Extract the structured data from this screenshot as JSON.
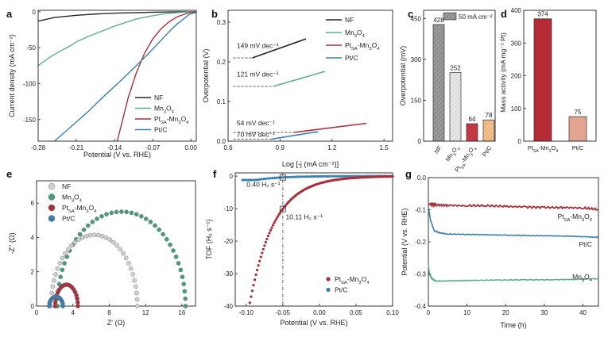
{
  "colors": {
    "nf": "#262626",
    "mn3o4": "#5fae92",
    "pt": "#a8303c",
    "ptc": "#3b7fae",
    "nf_light": "#cfcfcf",
    "mn_light": "#4a9c7e",
    "bar_nf": "#7a7a7a",
    "bar_mn": "#cfcfcf",
    "bar_pt": "#b52a37",
    "bar_ptc": "#e8a663",
    "mass_pt": "#b52a37",
    "mass_ptc": "#e3a592"
  },
  "chart_data": [
    {
      "panel": "a",
      "type": "line",
      "xlabel": "Potential (V vs. RHE)",
      "ylabel": "Current density (mA cm⁻²)",
      "xlim": [
        -0.28,
        0.01
      ],
      "ylim": [
        -180,
        2
      ],
      "xticks": [
        "-0.28",
        "-0.21",
        "-0.14",
        "-0.07",
        "0.00"
      ],
      "yticks": [
        "0",
        "-50",
        "-100",
        "-150"
      ],
      "legend": [
        "NF",
        "Mn3O4",
        "PtSA-Mn3O4",
        "Pt/C"
      ],
      "series": [
        {
          "name": "NF",
          "color_key": "nf",
          "x": [
            -0.28,
            -0.25,
            -0.21,
            -0.17,
            -0.14,
            -0.1,
            -0.07,
            -0.04,
            -0.02,
            0.0,
            0.01
          ],
          "y": [
            -13,
            -8,
            -5,
            -3,
            -2,
            -1.2,
            -0.7,
            -0.3,
            -0.1,
            0,
            0
          ]
        },
        {
          "name": "Mn3O4",
          "color_key": "mn3o4",
          "x": [
            -0.28,
            -0.26,
            -0.24,
            -0.22,
            -0.21,
            -0.19,
            -0.17,
            -0.15,
            -0.14,
            -0.12,
            -0.1,
            -0.08,
            -0.07,
            -0.05,
            -0.03,
            -0.01,
            0.0,
            0.01
          ],
          "y": [
            -75,
            -64,
            -55,
            -47,
            -42,
            -35,
            -29,
            -23,
            -20,
            -15,
            -10,
            -7,
            -5.5,
            -3,
            -1.5,
            -0.5,
            -0.2,
            0
          ]
        },
        {
          "name": "PtSA-Mn3O4",
          "color_key": "pt",
          "x": [
            -0.135,
            -0.125,
            -0.115,
            -0.1,
            -0.085,
            -0.07,
            -0.055,
            -0.04,
            -0.025,
            -0.01,
            0.0,
            0.01
          ],
          "y": [
            -180,
            -150,
            -120,
            -85,
            -58,
            -38,
            -24,
            -14,
            -7,
            -3,
            -1,
            0
          ]
        },
        {
          "name": "Pt/C",
          "color_key": "ptc",
          "x": [
            -0.25,
            -0.22,
            -0.19,
            -0.16,
            -0.13,
            -0.1,
            -0.08,
            -0.06,
            -0.045,
            -0.035,
            -0.025,
            -0.015,
            -0.005,
            0.0,
            0.01
          ],
          "y": [
            -180,
            -160,
            -140,
            -118,
            -97,
            -75,
            -60,
            -44,
            -32,
            -24,
            -17,
            -11,
            -5,
            -3,
            -1
          ]
        }
      ]
    },
    {
      "panel": "b",
      "type": "line",
      "xlabel": "Log [-j (mA cm⁻²)]",
      "ylabel": "Overpotential (V)",
      "xlim": [
        0.6,
        1.55
      ],
      "ylim": [
        0.0,
        0.33
      ],
      "xticks": [
        "0.6",
        "0.9",
        "1.2",
        "1.5"
      ],
      "yticks": [
        "0.0",
        "0.1",
        "0.2",
        "0.3"
      ],
      "legend": [
        "NF",
        "Mn3O4",
        "PtSA-Mn3O4",
        "Pt/C"
      ],
      "series": [
        {
          "name": "NF",
          "color_key": "nf",
          "x": [
            0.74,
            1.05
          ],
          "y": [
            0.21,
            0.258
          ]
        },
        {
          "name": "Mn3O4",
          "color_key": "mn3o4",
          "x": [
            0.86,
            1.16
          ],
          "y": [
            0.138,
            0.176
          ]
        },
        {
          "name": "PtSA-Mn3O4",
          "color_key": "pt",
          "x": [
            0.98,
            1.4
          ],
          "y": [
            0.022,
            0.045
          ]
        },
        {
          "name": "Pt/C",
          "color_key": "ptc",
          "x": [
            0.85,
            1.12
          ],
          "y": [
            0.005,
            0.024
          ]
        }
      ],
      "annotations": [
        "149 mV dec⁻¹",
        "121 mV dec⁻¹",
        "54 mV dec⁻¹",
        "70 mV dec⁻¹"
      ]
    },
    {
      "panel": "c",
      "type": "bar",
      "ylabel": "Overpotential (mV)",
      "ylim": [
        0,
        480
      ],
      "yticks": [
        "0",
        "150",
        "300",
        "450"
      ],
      "legend": "50 mA cm⁻²",
      "categories": [
        "NF",
        "Mn3O4",
        "PtSA-Mn3O4",
        "Pt/C"
      ],
      "values": [
        428,
        252,
        64,
        78
      ],
      "value_labels": [
        "428",
        "252",
        "64",
        "78"
      ]
    },
    {
      "panel": "d",
      "type": "bar",
      "ylabel": "Mass activity (mA mg⁻¹ Pt)",
      "ylim": [
        0,
        400
      ],
      "yticks": [
        "0",
        "100",
        "200",
        "300",
        "400"
      ],
      "categories": [
        "PtSA-Mn3O4",
        "Pt/C"
      ],
      "values": [
        374,
        75
      ],
      "value_labels": [
        "374",
        "75"
      ]
    },
    {
      "panel": "e",
      "type": "scatter",
      "xlabel": "Z' (Ω)",
      "ylabel": "-Z'' (Ω)",
      "xlim": [
        0,
        17.5
      ],
      "ylim": [
        0,
        7.3
      ],
      "xticks": [
        "0",
        "4",
        "8",
        "12",
        "16"
      ],
      "yticks": [
        "0",
        "2",
        "4",
        "6"
      ],
      "legend": [
        "NF",
        "Mn3O4",
        "PtSA-Mn3O4",
        "Pt/C"
      ],
      "series": [
        {
          "name": "NF",
          "color_key": "nf_light",
          "center": 6.35,
          "radius": 4.75,
          "height": 4.15,
          "points": 34
        },
        {
          "name": "Mn3O4",
          "color_key": "mn_light",
          "center": 9.35,
          "radius": 7.05,
          "height": 5.5,
          "points": 40
        },
        {
          "name": "PtSA-Mn3O4",
          "color_key": "pt",
          "center": 3.3,
          "radius": 1.25,
          "height": 1.25,
          "points": 18
        },
        {
          "name": "Pt/C",
          "color_key": "ptc",
          "center": 2.15,
          "radius": 0.75,
          "height": 0.55,
          "points": 12
        }
      ]
    },
    {
      "panel": "f",
      "type": "scatter",
      "xlabel": "Potential (V vs. RHE)",
      "ylabel": "TOF (H₂ s⁻¹)",
      "xlim": [
        -0.115,
        0.1
      ],
      "ylim": [
        -40,
        1
      ],
      "xticks": [
        "-0.10",
        "-0.05",
        "0.00",
        "0.05",
        "0.10"
      ],
      "yticks": [
        "0",
        "-10",
        "-20",
        "-30",
        "-40"
      ],
      "legend": [
        "PtSA-Mn3O4",
        "Pt/C"
      ],
      "markers": [
        {
          "x": -0.05,
          "y": -0.4
        },
        {
          "x": -0.05,
          "y": -10.11
        }
      ],
      "annotations": [
        "0.40 H₂ s⁻¹",
        "10.11 H₂ s⁻¹"
      ]
    },
    {
      "panel": "g",
      "type": "line",
      "xlabel": "Time (h)",
      "ylabel": "Potential (V vs. RHE)",
      "xlim": [
        0,
        44
      ],
      "ylim": [
        -0.4,
        0.0
      ],
      "xticks": [
        "0",
        "10",
        "20",
        "30",
        "40"
      ],
      "yticks": [
        "0.0",
        "-0.1",
        "-0.2",
        "-0.3",
        "-0.4"
      ],
      "series": [
        {
          "name": "PtSA-Mn3O4",
          "color_key": "pt",
          "x": [
            0,
            0.5,
            2,
            5,
            10,
            15,
            20,
            25,
            30,
            35,
            40,
            44
          ],
          "y": [
            -0.085,
            -0.082,
            -0.084,
            -0.086,
            -0.088,
            -0.088,
            -0.09,
            -0.091,
            -0.092,
            -0.093,
            -0.095,
            -0.1
          ]
        },
        {
          "name": "Pt/C",
          "color_key": "ptc",
          "x": [
            0,
            0.5,
            1.5,
            3,
            5,
            10,
            15,
            20,
            25,
            30,
            35,
            40,
            44
          ],
          "y": [
            -0.09,
            -0.13,
            -0.165,
            -0.172,
            -0.176,
            -0.177,
            -0.178,
            -0.179,
            -0.18,
            -0.181,
            -0.182,
            -0.184,
            -0.186
          ]
        },
        {
          "name": "Mn3O4",
          "color_key": "mn3o4",
          "x": [
            0,
            0.3,
            1,
            2,
            4,
            8,
            12,
            18,
            25,
            32,
            38,
            44
          ],
          "y": [
            -0.27,
            -0.3,
            -0.315,
            -0.322,
            -0.322,
            -0.321,
            -0.32,
            -0.319,
            -0.318,
            -0.318,
            -0.317,
            -0.315
          ]
        }
      ],
      "labels": [
        "PtSA-Mn3O4",
        "Pt/C",
        "Mn3O4"
      ]
    }
  ]
}
